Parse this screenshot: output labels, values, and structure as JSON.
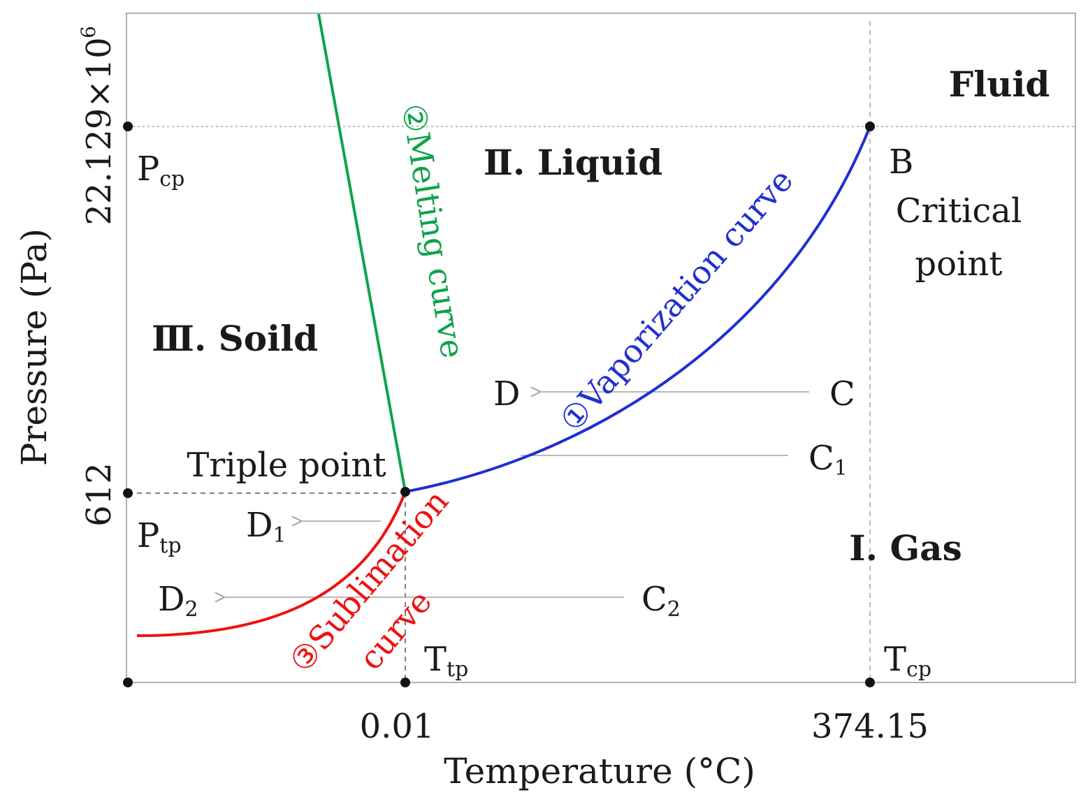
{
  "axes": {
    "xlabel": "Temperature (°C)",
    "ylabel": "Pressure (Pa)",
    "x_ticks": [
      "0.01",
      "374.15"
    ],
    "y_ticks": [
      "612",
      "22.129×10"
    ],
    "y_tick_exponent": "6"
  },
  "regions": {
    "gas": "Ⅰ. Gas",
    "liquid": "Ⅱ. Liquid",
    "solid": "Ⅲ. Soild",
    "fluid": "Fluid"
  },
  "curves": {
    "vaporization": "①Vaporization curve",
    "melting": "②Melting curve",
    "sublimation_line1": "③Sublimation",
    "sublimation_line2": "curve"
  },
  "points": {
    "critical_letter": "B",
    "critical_line1": "Critical",
    "critical_line2": "point",
    "triple": "Triple point",
    "p_cp": {
      "main": "P",
      "sub": "cp"
    },
    "p_tp": {
      "main": "P",
      "sub": "tp"
    },
    "t_tp": {
      "main": "T",
      "sub": "tp"
    },
    "t_cp": {
      "main": "T",
      "sub": "cp"
    }
  },
  "arrows": {
    "c": "C",
    "d": "D",
    "c1": {
      "main": "C",
      "sub": "1"
    },
    "d1": {
      "main": "D",
      "sub": "1"
    },
    "c2": {
      "main": "C",
      "sub": "2"
    },
    "d2": {
      "main": "D",
      "sub": "2"
    }
  },
  "colors": {
    "vaporization": "#1f2fd1",
    "melting": "#0fa34a",
    "sublimation": "#ee1111",
    "frame": "#b0b0b0",
    "guide": "#a6a6a6",
    "arrow": "#a0a0a0",
    "text": "#1a1a1a"
  }
}
